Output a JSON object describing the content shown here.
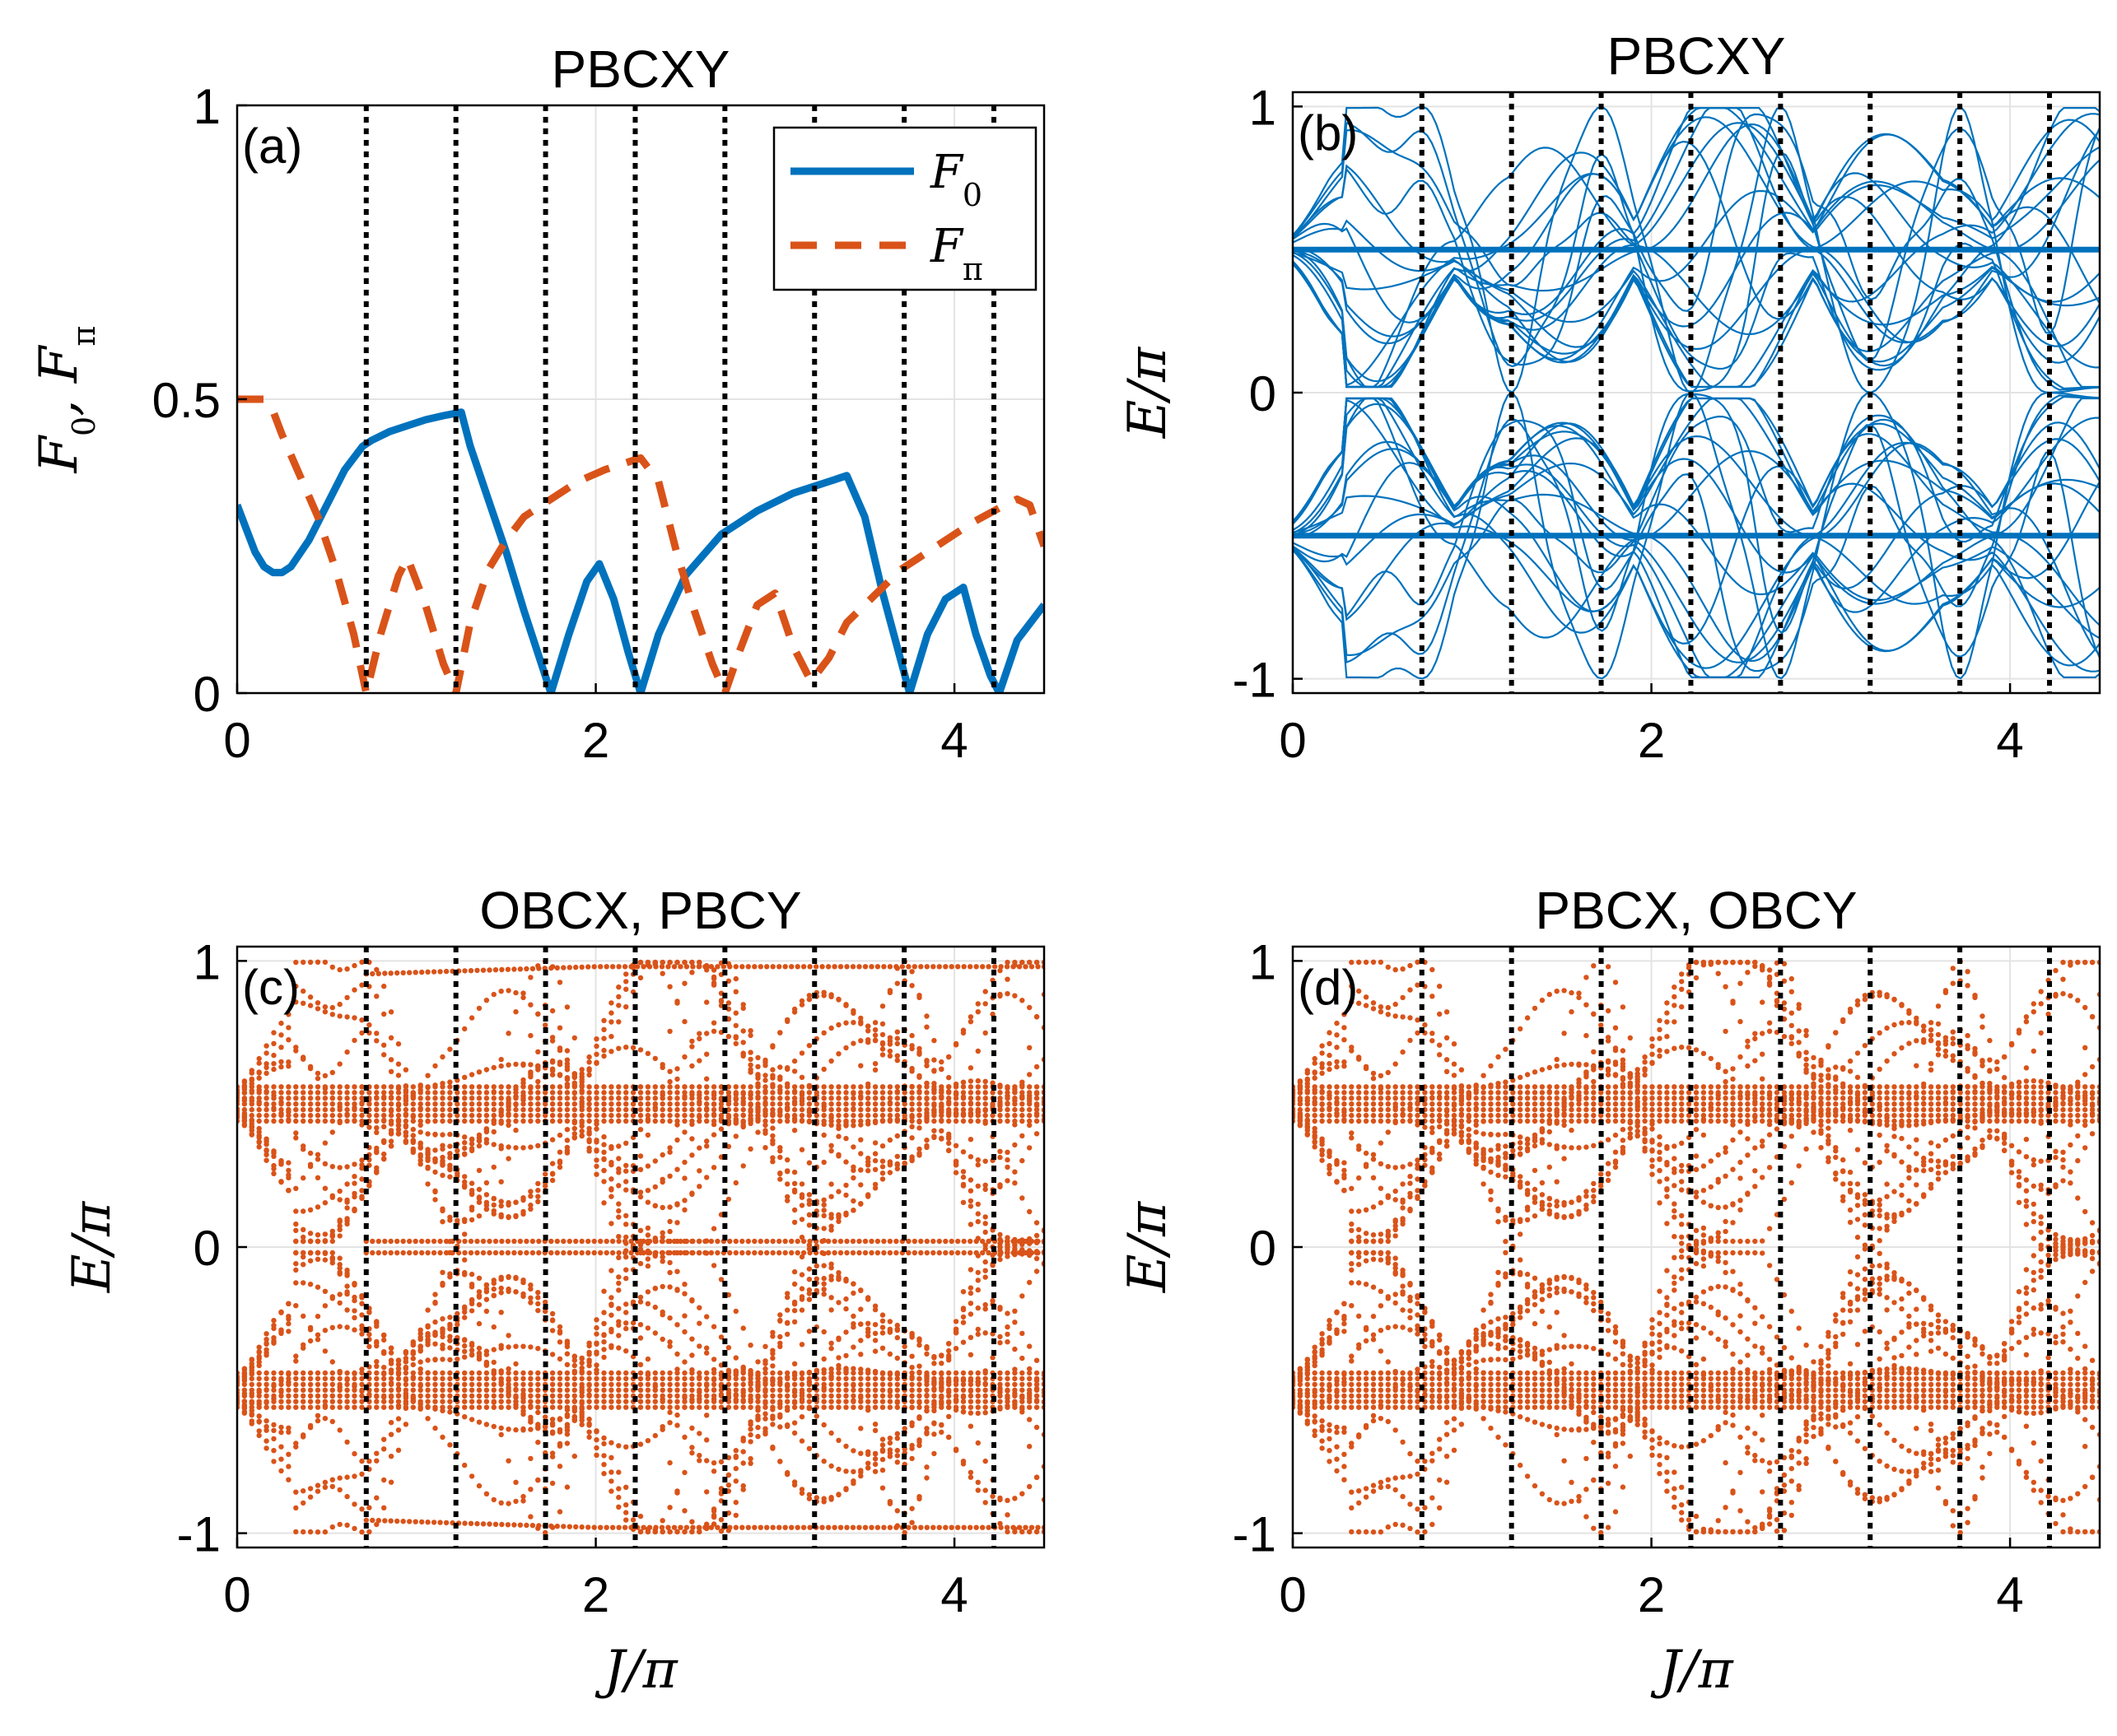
{
  "chart_data": [
    {
      "panel": "(a)",
      "type": "line",
      "title": "PBCXY",
      "xlabel": "",
      "ylabel": "F_0, F_π",
      "xlim": [
        0,
        4.5
      ],
      "ylim": [
        0,
        1
      ],
      "xticks": [
        "0",
        "2",
        "4"
      ],
      "yticks": [
        "0",
        "0.5",
        "1"
      ],
      "grid": true,
      "legend": "top-right",
      "series": [
        {
          "name": "F_0",
          "color": "#0072BD",
          "style": "solid",
          "x": [
            0,
            0.05,
            0.1,
            0.15,
            0.2,
            0.25,
            0.3,
            0.4,
            0.5,
            0.6,
            0.7,
            0.75,
            0.85,
            0.95,
            1.05,
            1.15,
            1.25,
            1.3,
            1.4,
            1.5,
            1.6,
            1.75,
            1.85,
            1.95,
            2.02,
            2.1,
            2.18,
            2.25,
            2.35,
            2.5,
            2.7,
            2.9,
            3.1,
            3.3,
            3.4,
            3.5,
            3.6,
            3.75,
            3.85,
            3.95,
            4.05,
            4.12,
            4.2,
            4.25,
            4.35,
            4.5
          ],
          "values": [
            0.32,
            0.28,
            0.24,
            0.215,
            0.205,
            0.205,
            0.215,
            0.26,
            0.32,
            0.38,
            0.42,
            0.43,
            0.445,
            0.455,
            0.465,
            0.472,
            0.478,
            0.42,
            0.33,
            0.24,
            0.14,
            0.0,
            0.1,
            0.19,
            0.22,
            0.16,
            0.07,
            0.0,
            0.1,
            0.2,
            0.27,
            0.31,
            0.34,
            0.36,
            0.37,
            0.3,
            0.17,
            0.0,
            0.1,
            0.16,
            0.18,
            0.1,
            0.03,
            0.0,
            0.09,
            0.15
          ]
        },
        {
          "name": "F_π",
          "color": "#D95319",
          "style": "dashed",
          "x": [
            0,
            0.15,
            0.2,
            0.25,
            0.35,
            0.45,
            0.55,
            0.65,
            0.72,
            0.8,
            0.9,
            0.95,
            1.05,
            1.15,
            1.22,
            1.3,
            1.4,
            1.5,
            1.6,
            1.75,
            1.9,
            2.05,
            2.25,
            2.35,
            2.45,
            2.55,
            2.65,
            2.72,
            2.8,
            2.9,
            3.0,
            3.1,
            3.2,
            3.3,
            3.4,
            3.5,
            3.6,
            3.7,
            3.8,
            3.95,
            4.1,
            4.25,
            4.35,
            4.42,
            4.5
          ],
          "values": [
            0.5,
            0.5,
            0.48,
            0.44,
            0.37,
            0.3,
            0.21,
            0.1,
            0.0,
            0.1,
            0.2,
            0.23,
            0.15,
            0.05,
            0.0,
            0.12,
            0.21,
            0.26,
            0.3,
            0.33,
            0.36,
            0.38,
            0.4,
            0.36,
            0.24,
            0.14,
            0.05,
            0.0,
            0.07,
            0.15,
            0.17,
            0.08,
            0.02,
            0.06,
            0.12,
            0.15,
            0.18,
            0.21,
            0.23,
            0.26,
            0.29,
            0.315,
            0.33,
            0.32,
            0.25
          ]
        }
      ],
      "vlines": [
        0.72,
        1.22,
        1.72,
        2.22,
        2.72,
        3.22,
        3.72,
        4.22
      ]
    },
    {
      "panel": "(b)",
      "type": "line",
      "title": "PBCXY",
      "xlabel": "",
      "ylabel": "E/π",
      "xlim": [
        0,
        4.5
      ],
      "ylim": [
        -1.05,
        1.05
      ],
      "xticks": [
        "0",
        "2",
        "4"
      ],
      "yticks": [
        "-1",
        "0",
        "1"
      ],
      "grid": true,
      "color": "#0072BD",
      "description": "quasienergy bands, symmetric about E=0, bands near ±0.5 with gap closings at ±1 and 0",
      "vlines": [
        0.72,
        1.22,
        1.72,
        2.22,
        2.72,
        3.22,
        3.72,
        4.22
      ]
    },
    {
      "panel": "(c)",
      "type": "scatter",
      "title": "OBCX, PBCY",
      "xlabel": "J/π",
      "ylabel": "E/π",
      "xlim": [
        0,
        4.5
      ],
      "ylim": [
        -1.05,
        1.05
      ],
      "xticks": [
        "0",
        "2",
        "4"
      ],
      "yticks": [
        "-1",
        "0",
        "1"
      ],
      "grid": true,
      "color": "#D95319",
      "description": "dotted quasienergy spectrum with edge states crossing at E=±1 and E=0",
      "vlines": [
        0.72,
        1.22,
        1.72,
        2.22,
        2.72,
        3.22,
        3.72,
        4.22
      ]
    },
    {
      "panel": "(d)",
      "type": "scatter",
      "title": "PBCX, OBCY",
      "xlabel": "J/π",
      "ylabel": "E/π",
      "xlim": [
        0,
        4.5
      ],
      "ylim": [
        -1.05,
        1.05
      ],
      "xticks": [
        "0",
        "2",
        "4"
      ],
      "yticks": [
        "-1",
        "0",
        "1"
      ],
      "grid": true,
      "color": "#D95319",
      "description": "dotted quasienergy spectrum without edge states, gap closings at vertical lines",
      "vlines": [
        0.72,
        1.22,
        1.72,
        2.22,
        2.72,
        3.22,
        3.72,
        4.22
      ]
    }
  ]
}
